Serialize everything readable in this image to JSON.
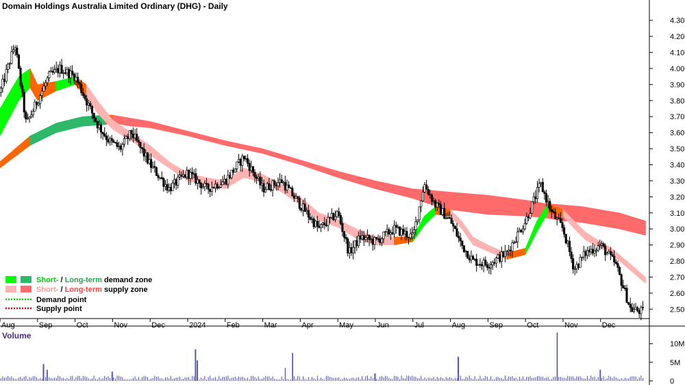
{
  "chart_data": {
    "type": "candlestick",
    "title": "Domain Holdings Australia Limited Ordinary (DHG) - Daily",
    "price_axis": {
      "ylim": [
        2.45,
        4.35
      ],
      "ticks": [
        {
          "v": 4.3,
          "label": "4.30"
        },
        {
          "v": 4.2,
          "label": "4.20"
        },
        {
          "v": 4.1,
          "label": "4.10"
        },
        {
          "v": 4.0,
          "label": "4.00"
        },
        {
          "v": 3.9,
          "label": "3.90"
        },
        {
          "v": 3.8,
          "label": "3.80"
        },
        {
          "v": 3.7,
          "label": "3.70"
        },
        {
          "v": 3.6,
          "label": "3.60"
        },
        {
          "v": 3.5,
          "label": "3.50"
        },
        {
          "v": 3.4,
          "label": "3.40"
        },
        {
          "v": 3.3,
          "label": "3.30"
        },
        {
          "v": 3.2,
          "label": "3.20"
        },
        {
          "v": 3.1,
          "label": "3.10"
        },
        {
          "v": 3.0,
          "label": "3.00"
        },
        {
          "v": 2.9,
          "label": "2.90"
        },
        {
          "v": 2.8,
          "label": "2.80"
        },
        {
          "v": 2.7,
          "label": "2.70"
        },
        {
          "v": 2.6,
          "label": "2.60"
        },
        {
          "v": 2.5,
          "label": "2.50"
        }
      ]
    },
    "time_axis": {
      "months": [
        "Aug",
        "Sep",
        "Oct",
        "Nov",
        "Dec",
        "2024",
        "Feb",
        "Mar",
        "Apr",
        "May",
        "Jun",
        "Jul",
        "Aug",
        "Sep",
        "Oct",
        "Nov",
        "Dec"
      ],
      "month_positions": [
        0.5,
        1.5,
        2.5,
        3.5,
        4.5,
        5.5,
        6.5,
        7.5,
        8.5,
        9.5,
        10.5,
        11.5,
        12.5,
        13.5,
        14.5,
        15.5,
        16.5
      ]
    },
    "price_path": {
      "t": [
        0,
        0.4,
        0.7,
        1.0,
        1.3,
        1.6,
        2.0,
        2.3,
        2.6,
        2.9,
        3.2,
        3.5,
        4.0,
        4.5,
        5.0,
        5.5,
        6.0,
        6.5,
        7.0,
        7.5,
        8.0,
        8.5,
        9.0,
        9.3,
        9.6,
        10.0,
        10.5,
        11.0,
        11.3,
        11.6,
        12.0,
        12.3,
        12.6,
        13.0,
        13.5,
        14.0,
        14.4,
        14.7,
        15.0,
        15.3,
        15.6,
        16.0,
        16.4,
        16.8,
        17.2
      ],
      "close": [
        3.85,
        4.15,
        3.65,
        3.8,
        3.95,
        4.0,
        3.95,
        3.8,
        3.65,
        3.55,
        3.5,
        3.6,
        3.4,
        3.25,
        3.35,
        3.25,
        3.3,
        3.45,
        3.25,
        3.3,
        3.15,
        3.0,
        3.1,
        2.85,
        2.95,
        2.92,
        3.0,
        2.95,
        3.28,
        3.15,
        3.05,
        2.9,
        2.8,
        2.78,
        2.85,
        3.05,
        3.28,
        3.1,
        3.0,
        2.75,
        2.85,
        2.9,
        2.78,
        2.5,
        2.48
      ],
      "volatility": 0.06
    },
    "zones": {
      "short_term": {
        "t": [
          0,
          0.5,
          0.8,
          1.0,
          1.5,
          2.0,
          2.3,
          2.6,
          3.0,
          3.5,
          4.0,
          4.5,
          5.0,
          5.5,
          6.0,
          6.5,
          7.0,
          7.5,
          8.0,
          8.5,
          9.0,
          9.5,
          10.0,
          10.5,
          11.0,
          11.3,
          11.6,
          12.0,
          12.3,
          12.6,
          13.0,
          13.5,
          14.0,
          14.3,
          14.6,
          15.0,
          15.3,
          15.6,
          16.0,
          16.3,
          16.6,
          16.9,
          17.2
        ],
        "upper": [
          3.75,
          3.95,
          4.0,
          3.9,
          3.92,
          3.95,
          3.9,
          3.8,
          3.68,
          3.6,
          3.52,
          3.42,
          3.35,
          3.32,
          3.3,
          3.38,
          3.34,
          3.28,
          3.2,
          3.1,
          3.06,
          3.0,
          2.95,
          2.95,
          2.95,
          3.08,
          3.14,
          3.12,
          3.05,
          2.95,
          2.9,
          2.85,
          2.88,
          3.05,
          3.16,
          3.12,
          3.05,
          2.98,
          2.92,
          2.88,
          2.82,
          2.76,
          2.7
        ],
        "lower": [
          3.58,
          3.8,
          3.88,
          3.8,
          3.86,
          3.9,
          3.82,
          3.72,
          3.62,
          3.55,
          3.46,
          3.38,
          3.3,
          3.27,
          3.25,
          3.32,
          3.29,
          3.23,
          3.15,
          3.05,
          3.01,
          2.94,
          2.9,
          2.9,
          2.92,
          3.02,
          3.09,
          3.08,
          3.0,
          2.9,
          2.86,
          2.81,
          2.84,
          2.98,
          3.1,
          3.08,
          3.0,
          2.93,
          2.88,
          2.84,
          2.78,
          2.72,
          2.66
        ],
        "kind": [
          "d",
          "d",
          "d",
          "s",
          "d",
          "d",
          "s",
          "s",
          "s",
          "s",
          "s",
          "s",
          "s",
          "s",
          "s",
          "s",
          "s",
          "s",
          "s",
          "s",
          "s",
          "s",
          "s",
          "s",
          "d",
          "d",
          "d",
          "s",
          "s",
          "s",
          "s",
          "s",
          "d",
          "d",
          "d",
          "s",
          "s",
          "s",
          "s",
          "s",
          "s",
          "s",
          "s"
        ]
      },
      "long_term": {
        "t": [
          0,
          0.8,
          1.5,
          2.2,
          2.8,
          3.0,
          3.5,
          4.0,
          5.0,
          6.0,
          7.0,
          8.0,
          9.0,
          10.0,
          11.0,
          11.5,
          12.0,
          13.0,
          14.0,
          14.5,
          15.0,
          15.5,
          16.0,
          16.5,
          17.2
        ],
        "upper": [
          3.42,
          3.58,
          3.66,
          3.7,
          3.71,
          3.71,
          3.69,
          3.67,
          3.61,
          3.55,
          3.5,
          3.43,
          3.36,
          3.3,
          3.25,
          3.24,
          3.23,
          3.21,
          3.18,
          3.16,
          3.15,
          3.14,
          3.12,
          3.1,
          3.05
        ],
        "lower": [
          3.38,
          3.52,
          3.6,
          3.64,
          3.65,
          3.66,
          3.64,
          3.63,
          3.58,
          3.52,
          3.47,
          3.4,
          3.32,
          3.25,
          3.19,
          3.15,
          3.12,
          3.09,
          3.08,
          3.07,
          3.05,
          3.04,
          3.02,
          3.0,
          2.96
        ],
        "kind": [
          "s",
          "d",
          "d",
          "d",
          "d",
          "s",
          "s",
          "s",
          "s",
          "s",
          "s",
          "s",
          "s",
          "s",
          "s",
          "s",
          "s",
          "s",
          "s",
          "s",
          "s",
          "s",
          "s",
          "s",
          "s"
        ]
      }
    },
    "volume": {
      "title": "Volume",
      "ylim": [
        0,
        14
      ],
      "ticks": [
        {
          "v": 10,
          "label": "10M"
        },
        {
          "v": 5,
          "label": "5M"
        },
        {
          "v": 0,
          "label": "0"
        }
      ],
      "base": 0.9,
      "spikes": [
        {
          "t": 1.15,
          "v": 4.5
        },
        {
          "t": 1.25,
          "v": 3.0
        },
        {
          "t": 5.2,
          "v": 8.5
        },
        {
          "t": 5.25,
          "v": 5.5
        },
        {
          "t": 7.8,
          "v": 7.5
        },
        {
          "t": 7.6,
          "v": 3.5
        },
        {
          "t": 12.2,
          "v": 6.5
        },
        {
          "t": 14.85,
          "v": 13.0
        },
        {
          "t": 16.0,
          "v": 3.0
        },
        {
          "t": 3.0,
          "v": 2.5
        },
        {
          "t": 10.0,
          "v": 2.0
        }
      ]
    },
    "legend": [
      {
        "key": "demand-zone",
        "short": "Short-",
        "sep": " / ",
        "long": "Long-term demand zone",
        "colors": [
          "#00ff00",
          "#2db86a"
        ],
        "text_colors": [
          "#00cc00",
          "#2d9c5a"
        ]
      },
      {
        "key": "supply-zone",
        "short": "Short-",
        "sep": " / ",
        "long": "Long-term supply zone",
        "colors": [
          "#ffb3b3",
          "#ff6b6b"
        ],
        "text_colors": [
          "#ff9999",
          "#ff4040"
        ]
      },
      {
        "key": "demand-point",
        "label": "Demand point",
        "color": "#00cc00"
      },
      {
        "key": "supply-point",
        "label": "Supply point",
        "color": "#cc0000"
      }
    ],
    "colors": {
      "candle": "#000000",
      "short_demand": "#00ff00",
      "long_demand": "#2db86a",
      "short_supply": "#ffb3b3",
      "long_supply": "#ff6b6b",
      "crossover": "#ff6600",
      "volume": "#4b4bb0",
      "volume_title": "#4b2a82"
    }
  }
}
